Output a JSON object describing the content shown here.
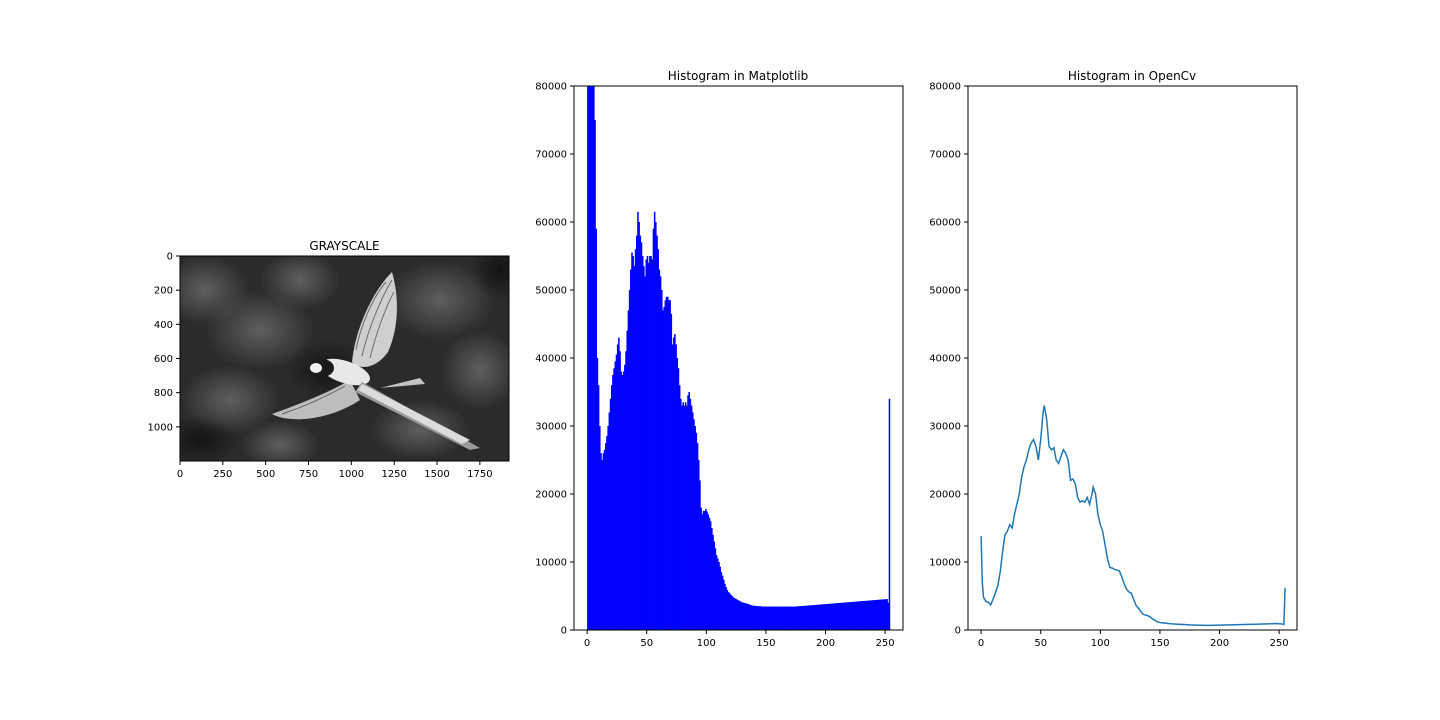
{
  "chart_data": [
    {
      "type": "image",
      "title": "GRAYSCALE",
      "colormap": "gray",
      "xlim": [
        0,
        1920
      ],
      "ylim": [
        1200,
        0
      ],
      "x_ticks": [
        0,
        250,
        500,
        750,
        1000,
        1250,
        1500,
        1750
      ],
      "y_ticks": [
        0,
        200,
        400,
        600,
        800,
        1000
      ],
      "image_description": "grayscale photo of a macaw parrot in flight with wings spread against a dark blurred foliage background",
      "image_label": "GRAYSCALE"
    },
    {
      "type": "bar",
      "title": "Histogram in Matplotlib",
      "color": "#0000ff",
      "xlim": [
        -11,
        265
      ],
      "ylim": [
        0,
        80000
      ],
      "x_ticks": [
        0,
        50,
        100,
        150,
        200,
        250
      ],
      "y_ticks": [
        0,
        10000,
        20000,
        30000,
        40000,
        50000,
        60000,
        70000,
        80000
      ],
      "bin_width": 1,
      "values": [
        84000,
        84000,
        84000,
        84000,
        84000,
        84000,
        75000,
        59000,
        40000,
        36000,
        30000,
        26000,
        25000,
        26000,
        26500,
        27500,
        28500,
        30000,
        32000,
        34000,
        36000,
        37500,
        38500,
        39500,
        40500,
        42000,
        43000,
        41000,
        38000,
        37500,
        38000,
        39000,
        41000,
        44000,
        47000,
        50000,
        53000,
        55500,
        55000,
        53500,
        56000,
        58000,
        61500,
        60000,
        58000,
        57000,
        55000,
        53500,
        52000,
        54500,
        55000,
        54000,
        55000,
        55000,
        54500,
        59000,
        61500,
        60000,
        58000,
        56000,
        53000,
        52000,
        50000,
        47000,
        47500,
        48500,
        49000,
        49000,
        48500,
        48500,
        46500,
        42000,
        43000,
        43500,
        42000,
        40000,
        38500,
        36000,
        34000,
        33000,
        33500,
        33000,
        33500,
        33000,
        34500,
        35000,
        34000,
        33000,
        32000,
        31000,
        30000,
        29000,
        27500,
        25000,
        22000,
        18000,
        17000,
        17500,
        17500,
        17800,
        17400,
        17000,
        16500,
        16000,
        15000,
        14000,
        13000,
        12000,
        11000,
        10500,
        10000,
        9300,
        8500,
        8000,
        7400,
        6800,
        6300,
        5900,
        5600,
        5400,
        5200,
        5000,
        4800,
        4700,
        4600,
        4500,
        4400,
        4300,
        4200,
        4100,
        4050,
        4000,
        3950,
        3900,
        3850,
        3800,
        3700,
        3650,
        3600,
        3600,
        3550,
        3550,
        3500,
        3500,
        3500,
        3500,
        3450,
        3450,
        3450,
        3450,
        3450,
        3450,
        3450,
        3450,
        3450,
        3450,
        3450,
        3450,
        3450,
        3450,
        3450,
        3450,
        3450,
        3450,
        3450,
        3450,
        3450,
        3450,
        3450,
        3450,
        3450,
        3450,
        3450,
        3450,
        3450,
        3460,
        3475,
        3489,
        3504,
        3518,
        3532,
        3546,
        3561,
        3575,
        3589,
        3604,
        3618,
        3632,
        3646,
        3661,
        3675,
        3689,
        3704,
        3718,
        3732,
        3746,
        3761,
        3775,
        3789,
        3804,
        3818,
        3832,
        3846,
        3861,
        3875,
        3889,
        3904,
        3918,
        3932,
        3946,
        3961,
        3975,
        3989,
        4004,
        4018,
        4032,
        4046,
        4061,
        4075,
        4089,
        4104,
        4118,
        4132,
        4146,
        4161,
        4175,
        4189,
        4204,
        4218,
        4232,
        4246,
        4261,
        4275,
        4289,
        4304,
        4318,
        4332,
        4346,
        4361,
        4375,
        4389,
        4404,
        4418,
        4432,
        4446,
        4461,
        4475,
        4489,
        4504,
        4518,
        4532,
        4546,
        4000,
        34000
      ]
    },
    {
      "type": "line",
      "title": "Histogram in OpenCv",
      "color": "#1f77b4",
      "xlim": [
        -11,
        265
      ],
      "ylim": [
        0,
        80000
      ],
      "x_ticks": [
        0,
        50,
        100,
        150,
        200,
        250
      ],
      "y_ticks": [
        0,
        10000,
        20000,
        30000,
        40000,
        50000,
        60000,
        70000,
        80000
      ],
      "points": [
        [
          0,
          13800
        ],
        [
          1,
          7000
        ],
        [
          2,
          4800
        ],
        [
          4,
          4200
        ],
        [
          6,
          4100
        ],
        [
          8,
          3700
        ],
        [
          10,
          4500
        ],
        [
          12,
          5500
        ],
        [
          14,
          6500
        ],
        [
          16,
          8500
        ],
        [
          18,
          11500
        ],
        [
          20,
          14000
        ],
        [
          22,
          14500
        ],
        [
          24,
          15500
        ],
        [
          26,
          15000
        ],
        [
          28,
          17000
        ],
        [
          30,
          18500
        ],
        [
          32,
          20000
        ],
        [
          34,
          22500
        ],
        [
          36,
          24000
        ],
        [
          38,
          25000
        ],
        [
          40,
          26500
        ],
        [
          42,
          27500
        ],
        [
          44,
          28000
        ],
        [
          46,
          27000
        ],
        [
          48,
          25000
        ],
        [
          50,
          28000
        ],
        [
          52,
          32000
        ],
        [
          53,
          33000
        ],
        [
          55,
          31000
        ],
        [
          57,
          27000
        ],
        [
          59,
          26500
        ],
        [
          61,
          26800
        ],
        [
          63,
          25000
        ],
        [
          65,
          24500
        ],
        [
          67,
          25500
        ],
        [
          69,
          26500
        ],
        [
          71,
          26000
        ],
        [
          73,
          25000
        ],
        [
          75,
          22000
        ],
        [
          77,
          22200
        ],
        [
          79,
          21500
        ],
        [
          81,
          19500
        ],
        [
          83,
          18800
        ],
        [
          85,
          19000
        ],
        [
          87,
          18800
        ],
        [
          89,
          19500
        ],
        [
          91,
          18500
        ],
        [
          93,
          20000
        ],
        [
          94,
          21000
        ],
        [
          96,
          20000
        ],
        [
          98,
          17000
        ],
        [
          100,
          15500
        ],
        [
          102,
          14500
        ],
        [
          104,
          12500
        ],
        [
          106,
          10500
        ],
        [
          108,
          9200
        ],
        [
          110,
          9100
        ],
        [
          112,
          8900
        ],
        [
          114,
          8800
        ],
        [
          116,
          8700
        ],
        [
          118,
          7800
        ],
        [
          120,
          6800
        ],
        [
          122,
          6000
        ],
        [
          124,
          5600
        ],
        [
          126,
          5400
        ],
        [
          128,
          4500
        ],
        [
          130,
          3600
        ],
        [
          132,
          3200
        ],
        [
          134,
          2700
        ],
        [
          136,
          2300
        ],
        [
          138,
          2200
        ],
        [
          140,
          2100
        ],
        [
          142,
          1900
        ],
        [
          144,
          1600
        ],
        [
          146,
          1400
        ],
        [
          148,
          1200
        ],
        [
          150,
          1100
        ],
        [
          155,
          1000
        ],
        [
          160,
          900
        ],
        [
          165,
          850
        ],
        [
          170,
          800
        ],
        [
          175,
          750
        ],
        [
          180,
          720
        ],
        [
          185,
          700
        ],
        [
          190,
          680
        ],
        [
          195,
          700
        ],
        [
          200,
          720
        ],
        [
          210,
          760
        ],
        [
          220,
          800
        ],
        [
          230,
          850
        ],
        [
          240,
          900
        ],
        [
          248,
          950
        ],
        [
          250,
          920
        ],
        [
          252,
          900
        ],
        [
          254,
          800
        ],
        [
          255,
          6200
        ]
      ]
    }
  ]
}
